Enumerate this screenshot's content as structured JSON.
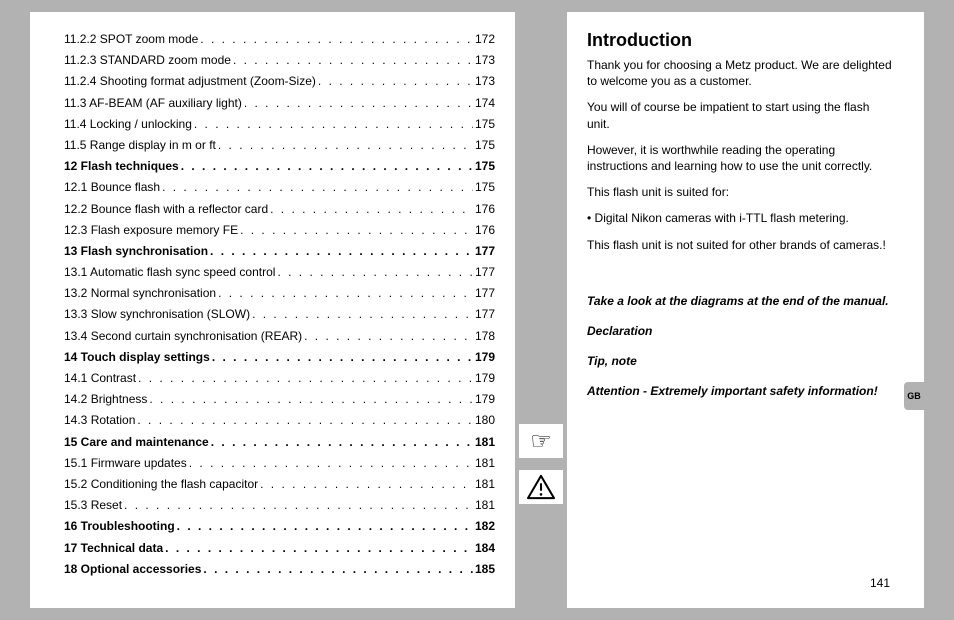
{
  "toc": [
    {
      "label": "11.2.2 SPOT zoom mode",
      "page": "172",
      "bold": false
    },
    {
      "label": "11.2.3 STANDARD zoom mode",
      "page": "173",
      "bold": false
    },
    {
      "label": "11.2.4 Shooting format adjustment (Zoom-Size)",
      "page": "173",
      "bold": false
    },
    {
      "label": "11.3 AF-BEAM (AF auxiliary light)",
      "page": "174",
      "bold": false
    },
    {
      "label": "11.4 Locking / unlocking",
      "page": "175",
      "bold": false
    },
    {
      "label": "11.5 Range display in m or ft",
      "page": "175",
      "bold": false
    },
    {
      "label": "12 Flash techniques",
      "page": "175",
      "bold": true
    },
    {
      "label": "12.1 Bounce flash",
      "page": "175",
      "bold": false
    },
    {
      "label": "12.2 Bounce flash with a reflector card",
      "page": "176",
      "bold": false
    },
    {
      "label": "12.3 Flash exposure memory FE",
      "page": "176",
      "bold": false
    },
    {
      "label": "13 Flash synchronisation",
      "page": "177",
      "bold": true
    },
    {
      "label": "13.1 Automatic flash sync speed control",
      "page": "177",
      "bold": false
    },
    {
      "label": "13.2 Normal synchronisation",
      "page": "177",
      "bold": false
    },
    {
      "label": "13.3 Slow synchronisation (SLOW)",
      "page": "177",
      "bold": false
    },
    {
      "label": "13.4 Second curtain synchronisation (REAR)",
      "page": "178",
      "bold": false
    },
    {
      "label": "14 Touch display settings",
      "page": "179",
      "bold": true
    },
    {
      "label": "14.1 Contrast",
      "page": "179",
      "bold": false
    },
    {
      "label": "14.2 Brightness",
      "page": "179",
      "bold": false
    },
    {
      "label": "14.3 Rotation",
      "page": "180",
      "bold": false
    },
    {
      "label": "15 Care and maintenance",
      "page": "181",
      "bold": true
    },
    {
      "label": "15.1 Firmware updates",
      "page": "181",
      "bold": false
    },
    {
      "label": "15.2 Conditioning the flash capacitor",
      "page": "181",
      "bold": false
    },
    {
      "label": "15.3 Reset",
      "page": "181",
      "bold": false
    },
    {
      "label": "16 Troubleshooting",
      "page": "182",
      "bold": true
    },
    {
      "label": "17 Technical data",
      "page": "184",
      "bold": true
    },
    {
      "label": "18 Optional accessories",
      "page": "185",
      "bold": true
    }
  ],
  "intro": {
    "title": "Introduction",
    "p1": "Thank you for choosing a Metz product. We are delighted to welcome you as a customer.",
    "p2": "You will of course be impatient to start using the flash unit.",
    "p3": "However, it is worthwhile reading the operating instructions and learning how to use the unit correctly.",
    "p4": "This flash unit is suited for:",
    "bullet1": "Digital Nikon cameras with i-TTL flash metering.",
    "p5": "This flash unit is not suited for other brands of cameras.!"
  },
  "callouts": {
    "diagrams": "Take a look at the diagrams at the end of the manual.",
    "declaration": "Declaration",
    "tip": "Tip, note",
    "attention": "Attention - Extremely important safety information!"
  },
  "sideTab": "GB",
  "pageNumber": "141",
  "dotsFill": ". . . . . . . . . . . . . . . . . . . . . . . . . . . . . . . . . . . . . . . . . . . . . . . . . . . . . . . . . . . ."
}
